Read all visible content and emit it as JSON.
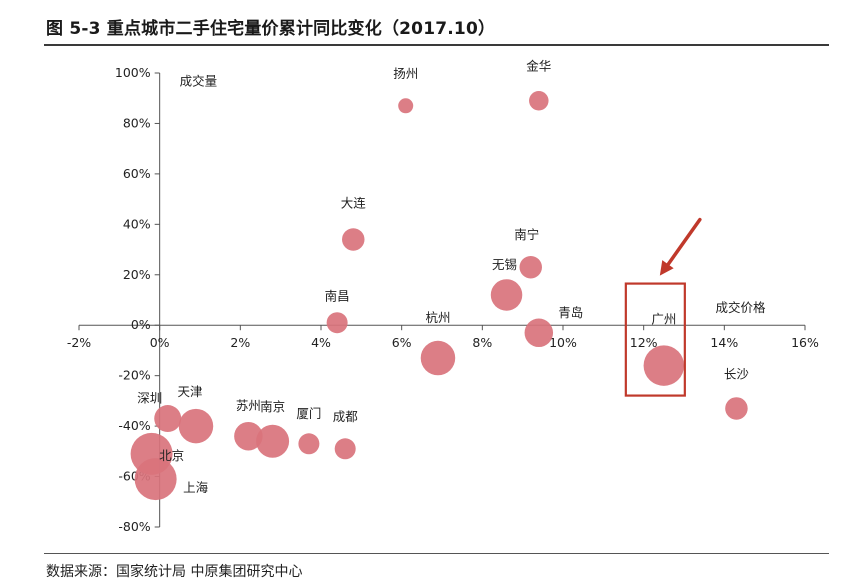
{
  "title": "图 5-3  重点城市二手住宅量价累计同比变化（2017.10）",
  "source": "数据来源：国家统计局  中原集团研究中心",
  "colors": {
    "bubble": "#d9737c",
    "highlight": "#c0392b",
    "axis": "#555555"
  },
  "chart_data": {
    "type": "scatter",
    "xlabel": "成交价格",
    "ylabel": "成交量",
    "xlim": [
      -2,
      16
    ],
    "ylim": [
      -80,
      100
    ],
    "x_ticks": [
      "-2%",
      "0%",
      "2%",
      "4%",
      "6%",
      "8%",
      "10%",
      "12%",
      "14%",
      "16%"
    ],
    "y_ticks": [
      "100%",
      "80%",
      "60%",
      "40%",
      "20%",
      "0%",
      "-20%",
      "-40%",
      "-60%",
      "-80%"
    ],
    "highlight": "广州",
    "points": [
      {
        "name": "扬州",
        "x": 6.1,
        "y": 87,
        "size": 1
      },
      {
        "name": "金华",
        "x": 9.4,
        "y": 89,
        "size": 1.3
      },
      {
        "name": "大连",
        "x": 4.8,
        "y": 34,
        "size": 1.5
      },
      {
        "name": "南宁",
        "x": 9.2,
        "y": 23,
        "size": 1.5
      },
      {
        "name": "无锡",
        "x": 8.6,
        "y": 12,
        "size": 2.1
      },
      {
        "name": "青岛",
        "x": 9.4,
        "y": -3,
        "size": 1.9
      },
      {
        "name": "南昌",
        "x": 4.4,
        "y": 1,
        "size": 1.4
      },
      {
        "name": "杭州",
        "x": 6.9,
        "y": -13,
        "size": 2.3
      },
      {
        "name": "广州",
        "x": 12.5,
        "y": -16,
        "size": 2.7
      },
      {
        "name": "长沙",
        "x": 14.3,
        "y": -33,
        "size": 1.5
      },
      {
        "name": "深圳",
        "x": 0.2,
        "y": -37,
        "size": 1.8
      },
      {
        "name": "天津",
        "x": 0.9,
        "y": -40,
        "size": 2.3
      },
      {
        "name": "苏州",
        "x": 2.2,
        "y": -44,
        "size": 1.9
      },
      {
        "name": "南京",
        "x": 2.8,
        "y": -46,
        "size": 2.2
      },
      {
        "name": "厦门",
        "x": 3.7,
        "y": -47,
        "size": 1.4
      },
      {
        "name": "成都",
        "x": 4.6,
        "y": -49,
        "size": 1.4
      },
      {
        "name": "北京",
        "x": -0.2,
        "y": -51,
        "size": 2.8
      },
      {
        "name": "上海",
        "x": -0.1,
        "y": -61,
        "size": 2.8
      }
    ]
  }
}
